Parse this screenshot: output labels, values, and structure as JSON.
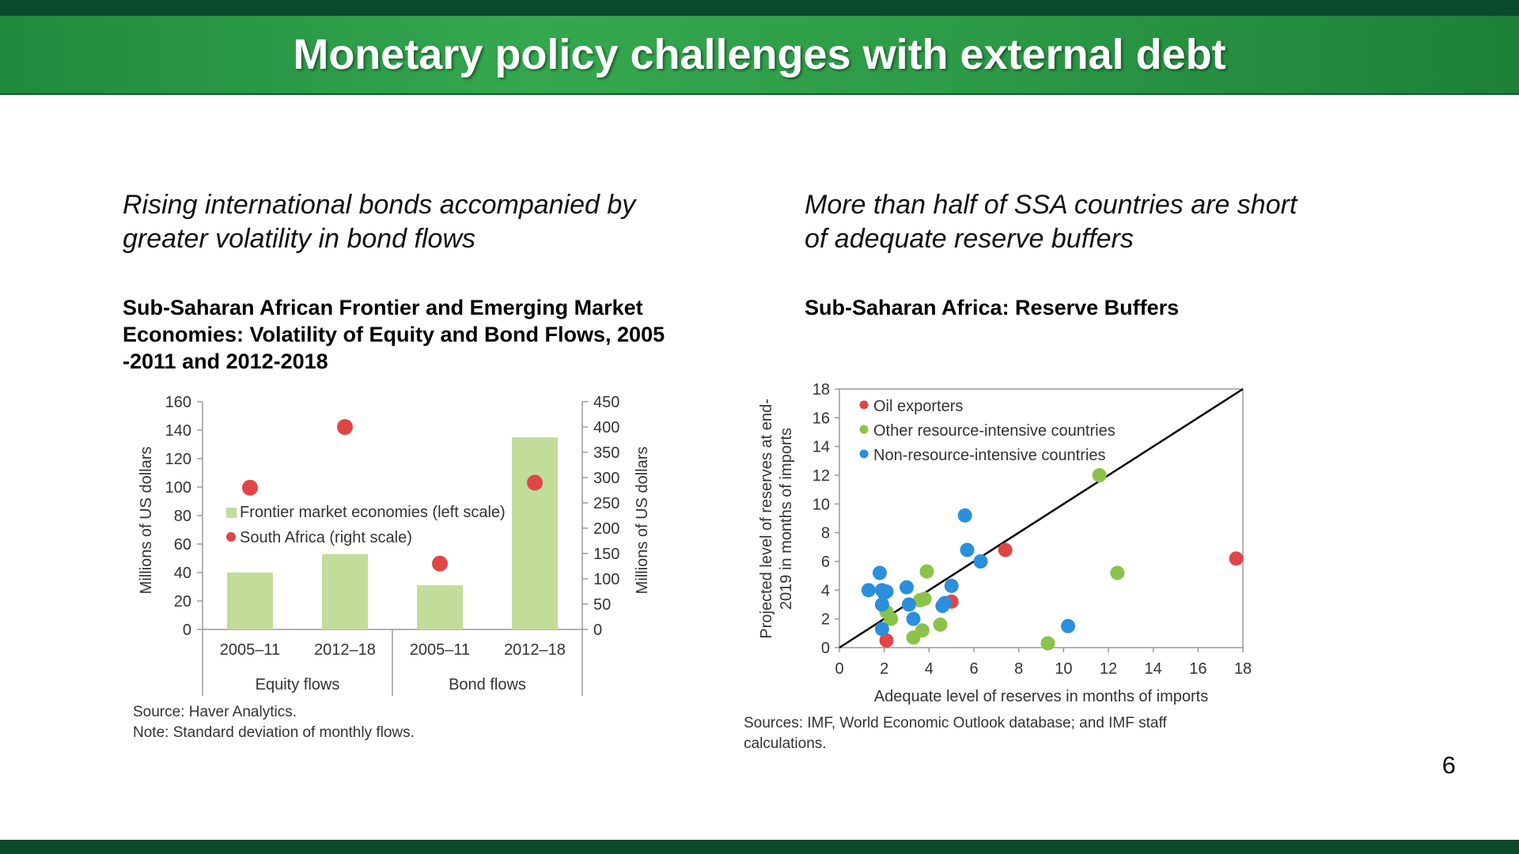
{
  "slide": {
    "title": "Monetary policy challenges with external debt",
    "page_number": "6"
  },
  "left_panel": {
    "subtitle_line1": "Rising international bonds accompanied by",
    "subtitle_line2": "greater volatility in bond flows",
    "chart_title_line1": "Sub-Saharan African Frontier and Emerging Market",
    "chart_title_line2": "Economies: Volatility of Equity and Bond Flows, 2005",
    "chart_title_line3": "-2011 and 2012-2018",
    "source": "Source: Haver Analytics.",
    "note": "Note: Standard deviation of monthly flows."
  },
  "right_panel": {
    "subtitle_line1": "More than half of SSA countries are short",
    "subtitle_line2": "of adequate reserve buffers",
    "chart_title": "Sub-Saharan Africa: Reserve Buffers",
    "source_line1": "Sources: IMF, World Economic Outlook database; and IMF staff",
    "source_line2": "calculations."
  },
  "colors": {
    "bar_green": "#c2dc9a",
    "red": "#e04646",
    "green": "#8bc34a",
    "blue": "#2b8fdc",
    "axis": "#9a9a9a"
  },
  "chart_data": [
    {
      "type": "bar",
      "title": "Sub-Saharan African Frontier and Emerging Market Economies: Volatility of Equity and Bond Flows, 2005-2011 and 2012-2018",
      "categories": [
        "2005–11",
        "2012–18",
        "2005–11",
        "2012–18"
      ],
      "groups": [
        {
          "label": "Equity flows",
          "categories": [
            0,
            1
          ]
        },
        {
          "label": "Bond flows",
          "categories": [
            2,
            3
          ]
        }
      ],
      "series": [
        {
          "name": "Frontier market economies (left scale)",
          "kind": "bar",
          "axis": "left",
          "values": [
            40,
            53,
            31,
            135
          ]
        },
        {
          "name": "South Africa (right scale)",
          "kind": "marker",
          "axis": "right",
          "values": [
            280,
            400,
            130,
            290
          ]
        }
      ],
      "ylabel": "Millions of US dollars",
      "y2label": "Millions of US dollars",
      "ylim": [
        0,
        160
      ],
      "y2lim": [
        0,
        450
      ],
      "yticks": [
        "0",
        "20",
        "40",
        "60",
        "80",
        "100",
        "120",
        "140",
        "160"
      ],
      "y2ticks": [
        "0",
        "50",
        "100",
        "150",
        "200",
        "250",
        "300",
        "350",
        "400",
        "450"
      ],
      "legend_position": "middle-left"
    },
    {
      "type": "scatter",
      "title": "Sub-Saharan Africa: Reserve Buffers",
      "xlabel": "Adequate level of reserves in months of imports",
      "ylabel_line1": "Projected level of reserves at end-",
      "ylabel_line2": "2019 in months of imports",
      "xlim": [
        0,
        18
      ],
      "ylim": [
        0,
        18
      ],
      "xticks": [
        "0",
        "2",
        "4",
        "6",
        "8",
        "10",
        "12",
        "14",
        "16",
        "18"
      ],
      "yticks": [
        "0",
        "2",
        "4",
        "6",
        "8",
        "10",
        "12",
        "14",
        "16",
        "18"
      ],
      "reference_line": "45-degree line",
      "legend_position": "top-left",
      "series": [
        {
          "name": "Oil exporters",
          "color": "red",
          "points": [
            [
              2.1,
              0.5
            ],
            [
              5.0,
              3.2
            ],
            [
              7.4,
              6.8
            ],
            [
              17.7,
              6.2
            ]
          ]
        },
        {
          "name": "Other resource-intensive countries",
          "color": "green",
          "points": [
            [
              2.1,
              2.5
            ],
            [
              2.3,
              2.0
            ],
            [
              3.3,
              0.7
            ],
            [
              3.7,
              1.2
            ],
            [
              3.6,
              3.3
            ],
            [
              3.8,
              3.4
            ],
            [
              3.9,
              5.3
            ],
            [
              4.5,
              1.6
            ],
            [
              9.3,
              0.3
            ],
            [
              11.6,
              12.0
            ],
            [
              12.4,
              5.2
            ]
          ]
        },
        {
          "name": "Non-resource-intensive countries",
          "color": "blue",
          "points": [
            [
              1.3,
              4.0
            ],
            [
              1.8,
              5.2
            ],
            [
              1.9,
              4.0
            ],
            [
              2.0,
              3.8
            ],
            [
              2.1,
              3.9
            ],
            [
              1.9,
              3.0
            ],
            [
              1.9,
              1.3
            ],
            [
              3.0,
              4.2
            ],
            [
              3.1,
              3.0
            ],
            [
              3.3,
              2.0
            ],
            [
              4.6,
              2.9
            ],
            [
              4.7,
              3.1
            ],
            [
              5.0,
              4.3
            ],
            [
              5.6,
              9.2
            ],
            [
              5.7,
              6.8
            ],
            [
              6.3,
              6.0
            ],
            [
              10.2,
              1.5
            ]
          ]
        }
      ]
    }
  ]
}
